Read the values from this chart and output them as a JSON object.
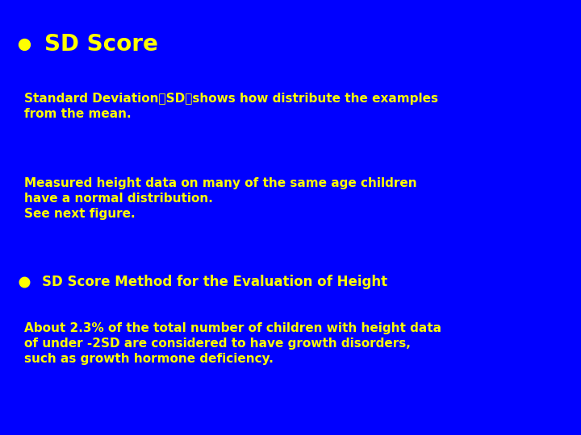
{
  "background_color": "#0000FF",
  "text_color": "#FFFF00",
  "dot_color": "#FFFF00",
  "title": "SD Score",
  "title_fontsize": 20,
  "body_fontsize": 11,
  "subtitle2_fontsize": 12,
  "paragraph1": "Standard Deviation（SD）shows how distribute the examples\nfrom the mean.",
  "paragraph2": "Measured height data on many of the same age children\nhave a normal distribution.\nSee next figure.",
  "subtitle2": "SD Score Method for the Evaluation of Height",
  "paragraph3": "About 2.3% of the total number of children with height data\nof under -2SD are considered to have growth disorders,\nsuch as growth hormone deficiency."
}
